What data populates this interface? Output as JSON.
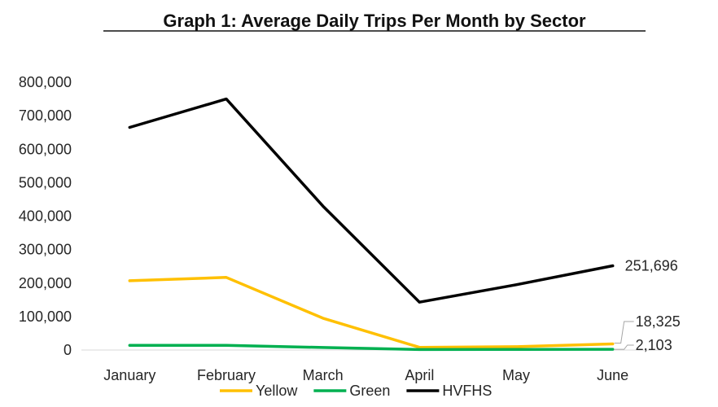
{
  "chart_data": {
    "type": "line",
    "title": "Graph 1: Average Daily Trips Per Month by Sector",
    "categories": [
      "January",
      "February",
      "March",
      "April",
      "May",
      "June"
    ],
    "ylim": [
      0,
      800000
    ],
    "yticks": [
      0,
      100000,
      200000,
      300000,
      400000,
      500000,
      600000,
      700000,
      800000
    ],
    "ytick_labels": [
      "0",
      "100,000",
      "200,000",
      "300,000",
      "400,000",
      "500,000",
      "600,000",
      "700,000",
      "800,000"
    ],
    "grid": false,
    "legend_position": "bottom",
    "series": [
      {
        "name": "Yellow",
        "color": "#FFC000",
        "values": [
          207000,
          217000,
          95000,
          8000,
          10000,
          18325
        ]
      },
      {
        "name": "Green",
        "color": "#00B050",
        "values": [
          14000,
          14000,
          7500,
          1500,
          1800,
          2103
        ]
      },
      {
        "name": "HVFHS",
        "color": "#000000",
        "values": [
          665000,
          750000,
          430000,
          143000,
          195000,
          251696
        ]
      }
    ],
    "annotations": [
      {
        "series": "HVFHS",
        "category": "June",
        "text": "251,696"
      },
      {
        "series": "Yellow",
        "category": "June",
        "text": "18,325"
      },
      {
        "series": "Green",
        "category": "June",
        "text": "2,103"
      }
    ]
  }
}
